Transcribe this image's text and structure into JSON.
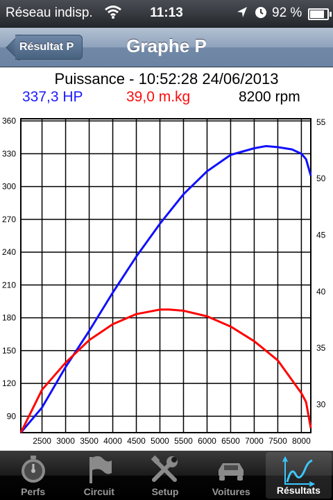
{
  "status": {
    "carrier": "Réseau indisp.",
    "time": "11:13",
    "battery": "92 %",
    "battery_level": 0.92
  },
  "nav": {
    "back_label": "Résultat P",
    "title": "Graphe P"
  },
  "chart_header": {
    "title": "Puissance - 10:52:28 24/06/2013",
    "hp": "337,3 HP",
    "torque": "39,0 m.kg",
    "rpm": "8200 rpm"
  },
  "colors": {
    "power": "#1010ff",
    "torque": "#ff0000",
    "grid": "#000000"
  },
  "chart_data": {
    "type": "line",
    "x_ticks": [
      2500,
      3000,
      3500,
      4000,
      4500,
      5000,
      5500,
      6000,
      6500,
      7000,
      7500,
      8000
    ],
    "y_left_ticks": [
      90,
      120,
      150,
      180,
      210,
      240,
      270,
      300,
      330,
      360
    ],
    "y_right_ticks": [
      30,
      35,
      40,
      45,
      50,
      55
    ],
    "xlim": [
      2050,
      8200
    ],
    "ylim_left": [
      75,
      362
    ],
    "ylim_right": [
      27.5,
      55.3
    ],
    "series": [
      {
        "axis": "left",
        "x": [
          2050,
          2500,
          3000,
          3500,
          4000,
          4500,
          5000,
          5500,
          6000,
          6500,
          7000,
          7250,
          7500,
          7800,
          8000,
          8100,
          8200
        ],
        "y": [
          75,
          98,
          135,
          168,
          203,
          236,
          266,
          293,
          314,
          329,
          335,
          337,
          336,
          334,
          330,
          325,
          310
        ]
      },
      {
        "axis": "right",
        "x": [
          2050,
          2500,
          3000,
          3500,
          4000,
          4500,
          5000,
          5200,
          5500,
          6000,
          6500,
          7000,
          7500,
          8000,
          8100,
          8200
        ],
        "y": [
          27.5,
          31.3,
          33.7,
          35.7,
          37.1,
          38.0,
          38.4,
          38.4,
          38.3,
          37.8,
          36.9,
          35.6,
          33.9,
          31.0,
          30.2,
          27.9
        ]
      }
    ]
  },
  "tabs": [
    {
      "label": "Perfs",
      "icon": "stopwatch-icon"
    },
    {
      "label": "Circuit",
      "icon": "flag-icon"
    },
    {
      "label": "Setup",
      "icon": "tools-icon"
    },
    {
      "label": "Voitures",
      "icon": "car-icon"
    },
    {
      "label": "Résultats",
      "icon": "graph-icon",
      "active": true
    }
  ]
}
